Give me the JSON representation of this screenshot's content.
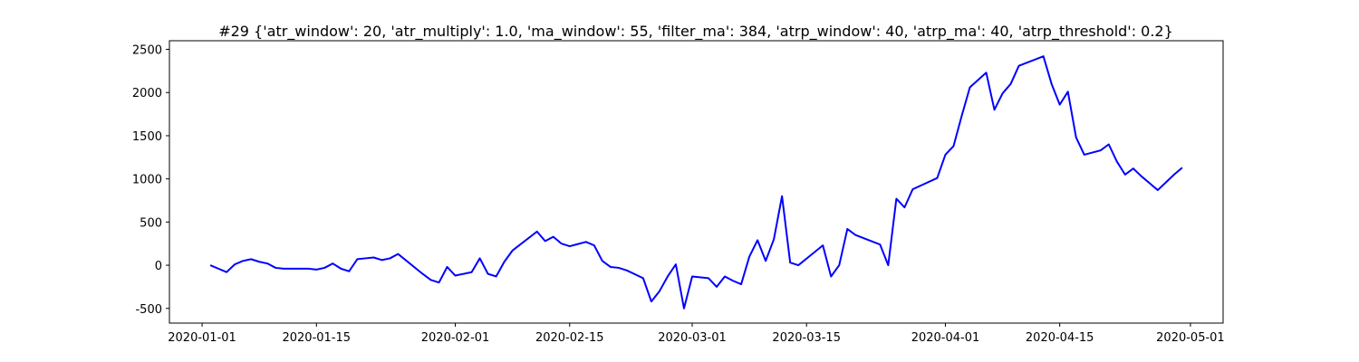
{
  "chart_data": {
    "type": "line",
    "title": "#29 {'atr_window': 20, 'atr_multiply': 1.0, 'ma_window': 55, 'filter_ma': 384, 'atrp_window': 40, 'atrp_ma': 40, 'atrp_threshold': 0.2}",
    "x": [
      "2020-01-02",
      "2020-01-03",
      "2020-01-04",
      "2020-01-05",
      "2020-01-06",
      "2020-01-07",
      "2020-01-08",
      "2020-01-09",
      "2020-01-10",
      "2020-01-11",
      "2020-01-14",
      "2020-01-15",
      "2020-01-16",
      "2020-01-17",
      "2020-01-18",
      "2020-01-19",
      "2020-01-20",
      "2020-01-21",
      "2020-01-22",
      "2020-01-23",
      "2020-01-24",
      "2020-01-25",
      "2020-01-28",
      "2020-01-29",
      "2020-01-30",
      "2020-01-31",
      "2020-02-01",
      "2020-02-03",
      "2020-02-04",
      "2020-02-05",
      "2020-02-06",
      "2020-02-07",
      "2020-02-08",
      "2020-02-11",
      "2020-02-12",
      "2020-02-13",
      "2020-02-14",
      "2020-02-15",
      "2020-02-17",
      "2020-02-18",
      "2020-02-19",
      "2020-02-20",
      "2020-02-21",
      "2020-02-22",
      "2020-02-24",
      "2020-02-25",
      "2020-02-26",
      "2020-02-27",
      "2020-02-28",
      "2020-02-29",
      "2020-03-01",
      "2020-03-03",
      "2020-03-04",
      "2020-03-05",
      "2020-03-06",
      "2020-03-07",
      "2020-03-08",
      "2020-03-09",
      "2020-03-10",
      "2020-03-11",
      "2020-03-12",
      "2020-03-13",
      "2020-03-14",
      "2020-03-17",
      "2020-03-18",
      "2020-03-19",
      "2020-03-20",
      "2020-03-21",
      "2020-03-24",
      "2020-03-25",
      "2020-03-26",
      "2020-03-27",
      "2020-03-28",
      "2020-03-31",
      "2020-04-01",
      "2020-04-02",
      "2020-04-03",
      "2020-04-04",
      "2020-04-06",
      "2020-04-07",
      "2020-04-08",
      "2020-04-09",
      "2020-04-10",
      "2020-04-13",
      "2020-04-14",
      "2020-04-15",
      "2020-04-16",
      "2020-04-17",
      "2020-04-18",
      "2020-04-20",
      "2020-04-21",
      "2020-04-22",
      "2020-04-23",
      "2020-04-24",
      "2020-04-25",
      "2020-04-27",
      "2020-04-28",
      "2020-04-29",
      "2020-04-30"
    ],
    "series": [
      {
        "color": "#0000ff",
        "values": [
          0,
          -40,
          -80,
          10,
          50,
          70,
          40,
          20,
          -30,
          -40,
          -40,
          -50,
          -30,
          20,
          -40,
          -70,
          70,
          80,
          90,
          60,
          80,
          130,
          -100,
          -170,
          -200,
          -20,
          -120,
          -80,
          80,
          -100,
          -130,
          40,
          170,
          390,
          280,
          330,
          250,
          220,
          270,
          230,
          50,
          -20,
          -30,
          -60,
          -150,
          -420,
          -300,
          -130,
          10,
          -500,
          -130,
          -150,
          -250,
          -130,
          -180,
          -220,
          100,
          290,
          50,
          300,
          800,
          30,
          0,
          230,
          -130,
          0,
          420,
          350,
          240,
          0,
          770,
          670,
          880,
          1010,
          1280,
          1380,
          1730,
          2060,
          2230,
          1800,
          1990,
          2100,
          2310,
          2420,
          2100,
          1860,
          2010,
          1480,
          1280,
          1330,
          1400,
          1200,
          1050,
          1120,
          1030,
          870,
          960,
          1050,
          1130
        ]
      }
    ],
    "xlim": [
      "2019-12-28",
      "2020-05-05"
    ],
    "xticks": [
      "2020-01-01",
      "2020-01-15",
      "2020-02-01",
      "2020-02-15",
      "2020-03-01",
      "2020-03-15",
      "2020-04-01",
      "2020-04-15",
      "2020-05-01"
    ],
    "ylim": [
      -670,
      2600
    ],
    "yticks": [
      -500,
      0,
      500,
      1000,
      1500,
      2000,
      2500
    ]
  }
}
